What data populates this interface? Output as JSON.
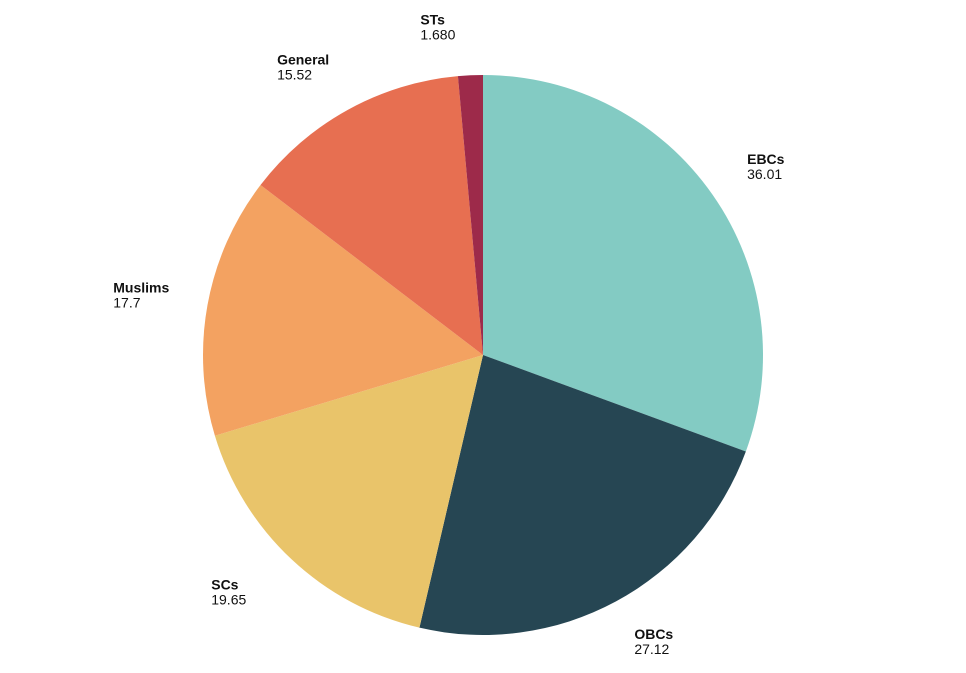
{
  "chart_data": {
    "type": "pie",
    "title": "",
    "slices": [
      {
        "label": "EBCs",
        "value_text": "36.01",
        "value": 36.01,
        "color": "#83cbc3"
      },
      {
        "label": "OBCs",
        "value_text": "27.12",
        "value": 27.12,
        "color": "#264653"
      },
      {
        "label": "SCs",
        "value_text": "19.65",
        "value": 19.65,
        "color": "#e9c46a"
      },
      {
        "label": "Muslims",
        "value_text": "17.7",
        "value": 17.7,
        "color": "#f3a261"
      },
      {
        "label": "General",
        "value_text": "15.52",
        "value": 15.52,
        "color": "#e76f51"
      },
      {
        "label": "STs",
        "value_text": "1.680",
        "value": 1.68,
        "color": "#9d2a4a"
      }
    ],
    "start": "12 o'clock",
    "direction": "clockwise",
    "legend": "none"
  }
}
